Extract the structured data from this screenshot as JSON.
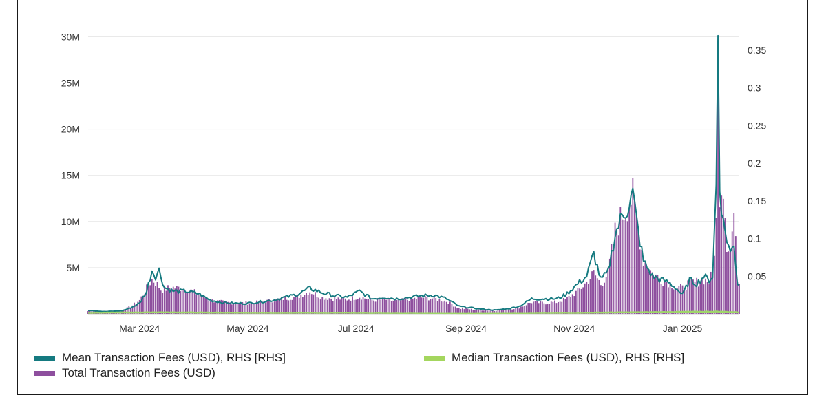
{
  "chart_data": {
    "type": "bar",
    "title": "",
    "xlabel": "",
    "ylabel": "",
    "x_range": [
      "2024-02-01",
      "2025-02-02"
    ],
    "ylim_left": [
      0,
      31000000
    ],
    "ylim_right": [
      0,
      0.38
    ],
    "grid": true,
    "legend_position": "bottom",
    "left_ticks": [
      {
        "value": 5000000,
        "label": "5M"
      },
      {
        "value": 10000000,
        "label": "10M"
      },
      {
        "value": 15000000,
        "label": "15M"
      },
      {
        "value": 20000000,
        "label": "20M"
      },
      {
        "value": 25000000,
        "label": "25M"
      },
      {
        "value": 30000000,
        "label": "30M"
      }
    ],
    "right_ticks": [
      {
        "value": 0.05,
        "label": "0.05"
      },
      {
        "value": 0.1,
        "label": "0.1"
      },
      {
        "value": 0.15,
        "label": "0.15"
      },
      {
        "value": 0.2,
        "label": "0.2"
      },
      {
        "value": 0.25,
        "label": "0.25"
      },
      {
        "value": 0.3,
        "label": "0.3"
      },
      {
        "value": 0.35,
        "label": "0.35"
      }
    ],
    "x_ticks": [
      {
        "date": "2024-03-01",
        "label": "Mar 2024"
      },
      {
        "date": "2024-05-01",
        "label": "May 2024"
      },
      {
        "date": "2024-07-01",
        "label": "Jul 2024"
      },
      {
        "date": "2024-09-01",
        "label": "Sep 2024"
      },
      {
        "date": "2024-11-01",
        "label": "Nov 2024"
      },
      {
        "date": "2025-01-01",
        "label": "Jan 2025"
      }
    ],
    "series": [
      {
        "name": "Total Transaction Fees (USD)",
        "kind": "bar",
        "axis": "left",
        "color": "#8e4f9e",
        "points": [
          [
            "2024-02-01",
            300000
          ],
          [
            "2024-02-13",
            250000
          ],
          [
            "2024-02-20",
            400000
          ],
          [
            "2024-02-25",
            800000
          ],
          [
            "2024-03-01",
            1500000
          ],
          [
            "2024-03-05",
            2800000
          ],
          [
            "2024-03-08",
            3800000
          ],
          [
            "2024-03-10",
            3500000
          ],
          [
            "2024-03-13",
            2700000
          ],
          [
            "2024-03-20",
            2900000
          ],
          [
            "2024-03-27",
            2800000
          ],
          [
            "2024-04-03",
            2200000
          ],
          [
            "2024-04-10",
            1500000
          ],
          [
            "2024-04-17",
            1300000
          ],
          [
            "2024-04-24",
            1200000
          ],
          [
            "2024-05-01",
            1200000
          ],
          [
            "2024-05-08",
            1300000
          ],
          [
            "2024-05-15",
            1500000
          ],
          [
            "2024-05-22",
            1700000
          ],
          [
            "2024-05-29",
            1900000
          ],
          [
            "2024-06-05",
            2500000
          ],
          [
            "2024-06-12",
            1800000
          ],
          [
            "2024-06-19",
            1700000
          ],
          [
            "2024-06-26",
            1600000
          ],
          [
            "2024-07-03",
            1900000
          ],
          [
            "2024-07-10",
            1500000
          ],
          [
            "2024-07-17",
            1600000
          ],
          [
            "2024-07-24",
            1400000
          ],
          [
            "2024-07-31",
            1600000
          ],
          [
            "2024-08-07",
            1800000
          ],
          [
            "2024-08-14",
            1700000
          ],
          [
            "2024-08-21",
            1400000
          ],
          [
            "2024-08-28",
            600000
          ],
          [
            "2024-09-04",
            500000
          ],
          [
            "2024-09-11",
            400000
          ],
          [
            "2024-09-18",
            350000
          ],
          [
            "2024-09-25",
            500000
          ],
          [
            "2024-10-01",
            700000
          ],
          [
            "2024-10-08",
            1300000
          ],
          [
            "2024-10-15",
            1200000
          ],
          [
            "2024-10-22",
            1300000
          ],
          [
            "2024-10-27",
            1600000
          ],
          [
            "2024-11-03",
            2500000
          ],
          [
            "2024-11-08",
            3500000
          ],
          [
            "2024-11-12",
            4500000
          ],
          [
            "2024-11-16",
            3300000
          ],
          [
            "2024-11-20",
            4500000
          ],
          [
            "2024-11-24",
            9000000
          ],
          [
            "2024-11-28",
            11000000
          ],
          [
            "2024-12-01",
            12000000
          ],
          [
            "2024-12-04",
            13000000
          ],
          [
            "2024-12-07",
            9500000
          ],
          [
            "2024-12-10",
            6000000
          ],
          [
            "2024-12-15",
            4500000
          ],
          [
            "2024-12-20",
            3800000
          ],
          [
            "2024-12-24",
            3500000
          ],
          [
            "2024-12-28",
            3000000
          ],
          [
            "2025-01-01",
            2800000
          ],
          [
            "2025-01-05",
            3500000
          ],
          [
            "2025-01-09",
            3500000
          ],
          [
            "2025-01-13",
            3800000
          ],
          [
            "2025-01-16",
            3600000
          ],
          [
            "2025-01-18",
            4500000
          ],
          [
            "2025-01-20",
            10000000
          ],
          [
            "2025-01-21",
            24000000
          ],
          [
            "2025-01-22",
            14000000
          ],
          [
            "2025-01-24",
            14500000
          ],
          [
            "2025-01-26",
            8000000
          ],
          [
            "2025-01-28",
            7000000
          ],
          [
            "2025-01-30",
            11000000
          ],
          [
            "2025-02-01",
            4000000
          ],
          [
            "2025-02-02",
            3500000
          ]
        ]
      },
      {
        "name": "Mean Transaction Fees (USD), RHS [RHS]",
        "kind": "line",
        "axis": "right",
        "color": "#157a80",
        "points": [
          [
            "2024-02-01",
            0.005
          ],
          [
            "2024-02-10",
            0.003
          ],
          [
            "2024-02-20",
            0.004
          ],
          [
            "2024-02-25",
            0.008
          ],
          [
            "2024-03-01",
            0.014
          ],
          [
            "2024-03-05",
            0.03
          ],
          [
            "2024-03-08",
            0.058
          ],
          [
            "2024-03-10",
            0.05
          ],
          [
            "2024-03-12",
            0.058
          ],
          [
            "2024-03-15",
            0.035
          ],
          [
            "2024-03-20",
            0.03
          ],
          [
            "2024-03-27",
            0.03
          ],
          [
            "2024-04-03",
            0.027
          ],
          [
            "2024-04-10",
            0.018
          ],
          [
            "2024-04-17",
            0.015
          ],
          [
            "2024-04-24",
            0.014
          ],
          [
            "2024-05-01",
            0.014
          ],
          [
            "2024-05-08",
            0.016
          ],
          [
            "2024-05-15",
            0.018
          ],
          [
            "2024-05-22",
            0.022
          ],
          [
            "2024-05-29",
            0.026
          ],
          [
            "2024-06-05",
            0.034
          ],
          [
            "2024-06-12",
            0.028
          ],
          [
            "2024-06-19",
            0.024
          ],
          [
            "2024-06-26",
            0.022
          ],
          [
            "2024-07-03",
            0.03
          ],
          [
            "2024-07-10",
            0.02
          ],
          [
            "2024-07-17",
            0.022
          ],
          [
            "2024-07-24",
            0.02
          ],
          [
            "2024-07-31",
            0.022
          ],
          [
            "2024-08-07",
            0.024
          ],
          [
            "2024-08-14",
            0.025
          ],
          [
            "2024-08-21",
            0.02
          ],
          [
            "2024-08-28",
            0.01
          ],
          [
            "2024-09-04",
            0.008
          ],
          [
            "2024-09-11",
            0.006
          ],
          [
            "2024-09-18",
            0.005
          ],
          [
            "2024-09-25",
            0.007
          ],
          [
            "2024-10-01",
            0.01
          ],
          [
            "2024-10-08",
            0.02
          ],
          [
            "2024-10-15",
            0.02
          ],
          [
            "2024-10-22",
            0.02
          ],
          [
            "2024-10-27",
            0.025
          ],
          [
            "2024-11-03",
            0.04
          ],
          [
            "2024-11-08",
            0.05
          ],
          [
            "2024-11-12",
            0.08
          ],
          [
            "2024-11-16",
            0.045
          ],
          [
            "2024-11-20",
            0.055
          ],
          [
            "2024-11-24",
            0.105
          ],
          [
            "2024-11-28",
            0.13
          ],
          [
            "2024-12-01",
            0.14
          ],
          [
            "2024-12-04",
            0.16
          ],
          [
            "2024-12-07",
            0.11
          ],
          [
            "2024-12-10",
            0.07
          ],
          [
            "2024-12-15",
            0.05
          ],
          [
            "2024-12-20",
            0.045
          ],
          [
            "2024-12-24",
            0.042
          ],
          [
            "2024-12-28",
            0.035
          ],
          [
            "2025-01-01",
            0.025
          ],
          [
            "2025-01-05",
            0.045
          ],
          [
            "2025-01-09",
            0.04
          ],
          [
            "2025-01-13",
            0.05
          ],
          [
            "2025-01-16",
            0.045
          ],
          [
            "2025-01-18",
            0.05
          ],
          [
            "2025-01-20",
            0.17
          ],
          [
            "2025-01-21",
            0.37
          ],
          [
            "2025-01-22",
            0.17
          ],
          [
            "2025-01-24",
            0.12
          ],
          [
            "2025-01-26",
            0.1
          ],
          [
            "2025-01-28",
            0.08
          ],
          [
            "2025-01-30",
            0.095
          ],
          [
            "2025-02-01",
            0.04
          ],
          [
            "2025-02-02",
            0.04
          ]
        ]
      },
      {
        "name": "Median Transaction Fees (USD), RHS [RHS]",
        "kind": "line",
        "axis": "right",
        "color": "#9fd66a",
        "points": [
          [
            "2024-02-01",
            0.0015
          ],
          [
            "2024-03-10",
            0.002
          ],
          [
            "2024-05-01",
            0.0015
          ],
          [
            "2024-07-01",
            0.0015
          ],
          [
            "2024-09-01",
            0.001
          ],
          [
            "2024-11-01",
            0.0015
          ],
          [
            "2024-12-01",
            0.002
          ],
          [
            "2025-01-21",
            0.003
          ],
          [
            "2025-02-02",
            0.002
          ]
        ]
      }
    ]
  },
  "legend": {
    "items": [
      {
        "label": "Mean Transaction Fees (USD), RHS [RHS]",
        "color": "#157a80"
      },
      {
        "label": "Median Transaction Fees (USD), RHS [RHS]",
        "color": "#a4d65e"
      },
      {
        "label": "Total Transaction Fees (USD)",
        "color": "#8e4f9e"
      }
    ]
  }
}
